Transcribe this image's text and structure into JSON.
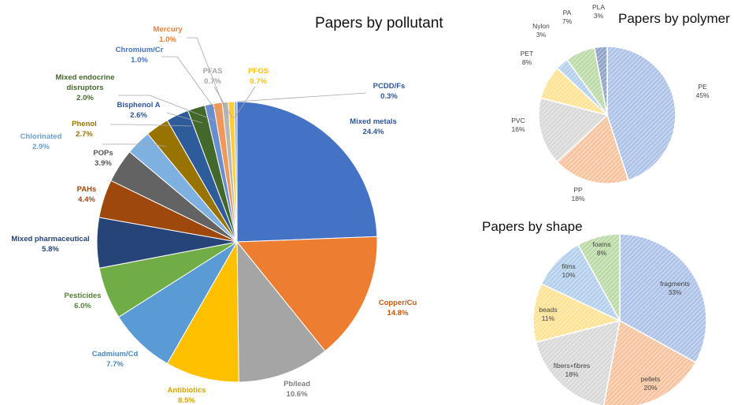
{
  "chart_data": [
    {
      "type": "pie",
      "title": "Papers by pollutant",
      "slices": [
        {
          "label": "Mixed metals",
          "display": "24.4%",
          "value": 24.4,
          "color": "#4472c4",
          "text_color": "#2f5597"
        },
        {
          "label": "Copper/Cu",
          "display": "14.8%",
          "value": 14.8,
          "color": "#ed7d31",
          "text_color": "#c55a11"
        },
        {
          "label": "Pb/lead",
          "display": "10.6%",
          "value": 10.6,
          "color": "#a5a5a5",
          "text_color": "#7f7f7f"
        },
        {
          "label": "Antibiotics",
          "display": "8.5%",
          "value": 8.5,
          "color": "#ffc000",
          "text_color": "#d9a400"
        },
        {
          "label": "Cadmium/Cd",
          "display": "7.7%",
          "value": 7.7,
          "color": "#5b9bd5",
          "text_color": "#4a86c0"
        },
        {
          "label": "Pesticides",
          "display": "6.0%",
          "value": 6.0,
          "color": "#70ad47",
          "text_color": "#548235"
        },
        {
          "label": "Mixed pharmaceutical",
          "display": "5.8%",
          "value": 5.8,
          "color": "#264478",
          "text_color": "#264478"
        },
        {
          "label": "PAHs",
          "display": "4.4%",
          "value": 4.4,
          "color": "#9e480e",
          "text_color": "#9e480e"
        },
        {
          "label": "POPs",
          "display": "3.9%",
          "value": 3.9,
          "color": "#636363",
          "text_color": "#555555"
        },
        {
          "label": "Chlorinated",
          "display": "2.9%",
          "value": 2.9,
          "color": "#7fb1e0",
          "text_color": "#6a9fd0"
        },
        {
          "label": "Phenol",
          "display": "2.7%",
          "value": 2.7,
          "color": "#997300",
          "text_color": "#997300"
        },
        {
          "label": "Bisphenol A",
          "display": "2.6%",
          "value": 2.6,
          "color": "#2e5c9a",
          "text_color": "#2f5597"
        },
        {
          "label": "Mixed endocrine disruptors",
          "display": "2.0%",
          "value": 2.0,
          "color": "#43682b",
          "text_color": "#43682b"
        },
        {
          "label": "Chromium/Cr",
          "display": "1.0%",
          "value": 1.0,
          "color": "#698ed0",
          "text_color": "#4472c4"
        },
        {
          "label": "Mercury",
          "display": "1.0%",
          "value": 1.0,
          "color": "#f1975a",
          "text_color": "#ed7d31"
        },
        {
          "label": "PFAS",
          "display": "0.7%",
          "value": 0.7,
          "color": "#b7b7b7",
          "text_color": "#a5a5a5"
        },
        {
          "label": "PFOS",
          "display": "0.7%",
          "value": 0.7,
          "color": "#ffcd33",
          "text_color": "#ffc000"
        },
        {
          "label": "PCDD/Fs",
          "display": "0.3%",
          "value": 0.3,
          "color": "#8faadc",
          "text_color": "#2f5597"
        }
      ]
    },
    {
      "type": "pie",
      "title": "Papers by polymer",
      "slices": [
        {
          "label": "PE",
          "display": "45%",
          "value": 45,
          "color": "#aec3e8"
        },
        {
          "label": "PP",
          "display": "18%",
          "value": 18,
          "color": "#f7c4a0"
        },
        {
          "label": "PVC",
          "display": "16%",
          "value": 16,
          "color": "#d9d9d9"
        },
        {
          "label": "PET",
          "display": "8%",
          "value": 8,
          "color": "#ffe394"
        },
        {
          "label": "Nylon",
          "display": "3%",
          "value": 3,
          "color": "#b4d0ed"
        },
        {
          "label": "PA",
          "display": "7%",
          "value": 7,
          "color": "#bcdba8"
        },
        {
          "label": "PLA",
          "display": "3%",
          "value": 3,
          "color": "#8fa4c8"
        }
      ]
    },
    {
      "type": "pie",
      "title": "Papers by shape",
      "slices": [
        {
          "label": "fragments",
          "display": "33%",
          "value": 33,
          "color": "#aec3e8"
        },
        {
          "label": "pellets",
          "display": "20%",
          "value": 20,
          "color": "#f7c4a0"
        },
        {
          "label": "fibers+fibres",
          "display": "18%",
          "value": 18,
          "color": "#d9d9d9"
        },
        {
          "label": "beads",
          "display": "11%",
          "value": 11,
          "color": "#ffe394"
        },
        {
          "label": "films",
          "display": "10%",
          "value": 10,
          "color": "#b4d0ed"
        },
        {
          "label": "foams",
          "display": "8%",
          "value": 8,
          "color": "#bcdba8"
        }
      ]
    }
  ]
}
